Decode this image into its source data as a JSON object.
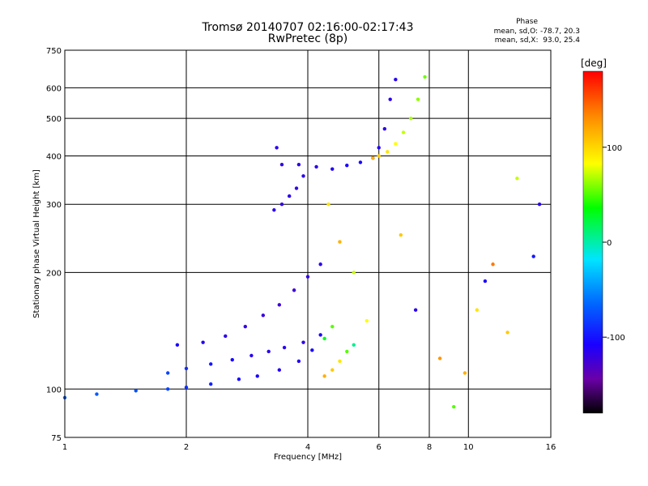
{
  "header": {
    "title_line1": "Tromsø 20140707 02:16:00-02:17:43",
    "title_line2": "RwPretec (8p)",
    "phase_heading": "Phase",
    "stat_line1": "mean, sd,O: -78.7, 20.3",
    "stat_line2": "mean, sd,X:  93.0, 25.4"
  },
  "chart_data": {
    "type": "scatter",
    "title": "Tromsø 20140707 02:16:00-02:17:43",
    "subtitle": "RwPretec (8p)",
    "xlabel": "Frequency [MHz]",
    "ylabel": "Stationary phase Virtual Height [km]",
    "xscale": "log",
    "yscale": "log",
    "xlim": [
      1,
      16
    ],
    "ylim": [
      75,
      750
    ],
    "x_ticks": [
      1,
      2,
      4,
      6,
      8,
      10,
      16
    ],
    "x_tick_labels": [
      "1",
      "2",
      "4",
      "6",
      "8",
      "10",
      "16"
    ],
    "y_ticks": [
      75,
      100,
      200,
      300,
      400,
      500,
      600,
      750
    ],
    "y_tick_labels": [
      "75",
      "100",
      "200",
      "300",
      "400",
      "500",
      "600",
      "750"
    ],
    "grid": true,
    "colorbar": {
      "label": "[deg]",
      "range": [
        -180,
        180
      ],
      "ticks": [
        100,
        0,
        -100
      ],
      "tick_labels": [
        "100",
        "0",
        "-100"
      ],
      "colors": [
        "#000000",
        "#6a00a8",
        "#1a00ff",
        "#0066ff",
        "#00e5ff",
        "#00ff00",
        "#ffff00",
        "#ff8800",
        "#ff0000"
      ]
    },
    "series": [
      {
        "name": "O",
        "traces": [
          {
            "segment": "E-F1 lower",
            "x": [
              1.0,
              1.2,
              1.5,
              1.8,
              2.0,
              2.3,
              2.7,
              3.0,
              3.4,
              3.8,
              4.1,
              4.4
            ],
            "y": [
              95,
              97,
              99,
              100,
              101,
              103,
              106,
              108,
              112,
              118,
              126,
              135
            ],
            "phase": [
              -50,
              -50,
              -55,
              -60,
              -70,
              -75,
              -85,
              -90,
              -95,
              -95,
              -90,
              40
            ]
          },
          {
            "segment": "F1 middle",
            "x": [
              1.8,
              2.0,
              2.3,
              2.6,
              2.9,
              3.2,
              3.5,
              3.9,
              4.3,
              4.6
            ],
            "y": [
              110,
              113,
              116,
              119,
              122,
              125,
              128,
              132,
              138,
              145
            ],
            "phase": [
              -60,
              -70,
              -80,
              -90,
              -95,
              -100,
              -100,
              -100,
              -90,
              60
            ]
          },
          {
            "segment": "F1 upper",
            "x": [
              1.9,
              2.2,
              2.5,
              2.8,
              3.1,
              3.4,
              3.7,
              4.0,
              4.3
            ],
            "y": [
              130,
              132,
              137,
              145,
              155,
              165,
              180,
              195,
              210
            ],
            "phase": [
              -90,
              -95,
              -100,
              -105,
              -105,
              -110,
              -110,
              -105,
              -100
            ]
          },
          {
            "segment": "F2 lower hook",
            "x": [
              3.3,
              3.45,
              3.6,
              3.75,
              3.9,
              3.45,
              3.35
            ],
            "y": [
              290,
              300,
              315,
              330,
              355,
              380,
              420
            ],
            "phase": [
              -100,
              -105,
              -100,
              -105,
              -100,
              -105,
              -100
            ]
          },
          {
            "segment": "F2 main",
            "x": [
              3.8,
              4.2,
              4.6,
              5.0,
              5.4,
              5.8,
              6.0,
              6.2,
              6.4,
              6.6
            ],
            "y": [
              380,
              375,
              370,
              378,
              385,
              395,
              420,
              470,
              560,
              630
            ],
            "phase": [
              -100,
              -100,
              -95,
              -90,
              -90,
              -90,
              -95,
              -100,
              -100,
              -95
            ]
          }
        ]
      },
      {
        "name": "X",
        "traces": [
          {
            "segment": "E-F1 X",
            "x": [
              4.4,
              4.6,
              4.8,
              5.0,
              5.2
            ],
            "y": [
              108,
              112,
              118,
              125,
              130
            ],
            "phase": [
              120,
              110,
              100,
              60,
              20
            ]
          },
          {
            "segment": "F2 X",
            "x": [
              5.8,
              6.0,
              6.3,
              6.6,
              6.9,
              7.2,
              7.5,
              7.8
            ],
            "y": [
              395,
              400,
              410,
              430,
              460,
              500,
              560,
              640
            ],
            "phase": [
              120,
              110,
              100,
              90,
              80,
              75,
              70,
              65
            ]
          }
        ]
      },
      {
        "name": "scattered",
        "x": [
          4.5,
          4.8,
          5.2,
          5.6,
          6.8,
          7.4,
          8.5,
          9.2,
          9.8,
          10.5,
          11.0,
          11.5,
          12.5,
          13.2,
          14.5,
          15.0
        ],
        "y": [
          300,
          240,
          200,
          150,
          250,
          160,
          120,
          90,
          110,
          160,
          190,
          210,
          140,
          350,
          220,
          300
        ],
        "phase": [
          100,
          120,
          80,
          90,
          110,
          -100,
          130,
          60,
          120,
          100,
          -90,
          140,
          110,
          80,
          -80,
          -100
        ]
      }
    ]
  }
}
